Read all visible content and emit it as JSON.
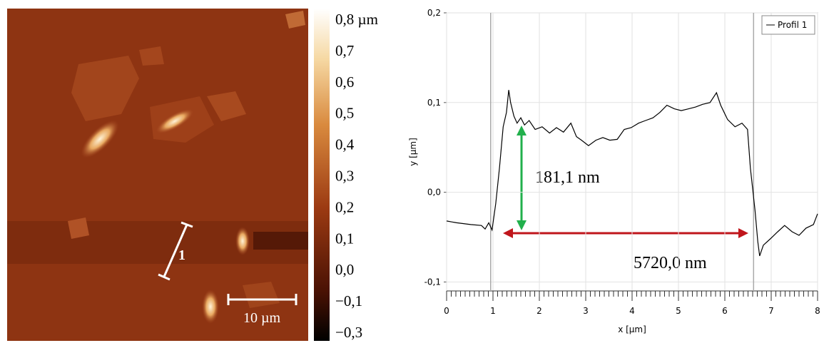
{
  "chart_data": [
    {
      "type": "image",
      "annotations": [
        "1",
        "10 µm"
      ],
      "colorbar_labels": [
        "0,8 µm",
        "0,7",
        "0,6",
        "0,5",
        "0,4",
        "0,3",
        "0,2",
        "0,1",
        "0,0",
        "−0,1",
        "−0,3"
      ]
    },
    {
      "type": "line",
      "xlabel": "x [µm]",
      "ylabel": "y [µm]",
      "x": [
        0,
        0.215,
        0.52,
        0.75,
        0.83,
        0.91,
        0.98,
        1.06,
        1.14,
        1.22,
        1.29,
        1.34,
        1.38,
        1.45,
        1.52,
        1.6,
        1.68,
        1.78,
        1.91,
        2.06,
        2.22,
        2.37,
        2.52,
        2.68,
        2.8,
        2.91,
        3.06,
        3.22,
        3.37,
        3.52,
        3.68,
        3.83,
        3.98,
        4.14,
        4.29,
        4.45,
        4.6,
        4.75,
        4.91,
        5.06,
        5.22,
        5.37,
        5.52,
        5.68,
        5.82,
        5.91,
        6.06,
        6.22,
        6.37,
        6.49,
        6.55,
        6.65,
        6.71,
        6.75,
        6.83,
        6.98,
        7.14,
        7.29,
        7.45,
        7.6,
        7.75,
        7.91,
        8
      ],
      "series": [
        {
          "name": "Profil 1",
          "color": "#000000",
          "values": [
            -0.032,
            -0.034,
            -0.036,
            -0.037,
            -0.041,
            -0.034,
            -0.042,
            -0.0125,
            0.027,
            0.073,
            0.089,
            0.114,
            0.1,
            0.085,
            0.077,
            0.083,
            0.075,
            0.08,
            0.07,
            0.073,
            0.066,
            0.072,
            0.067,
            0.077,
            0.062,
            0.058,
            0.052,
            0.058,
            0.061,
            0.058,
            0.059,
            0.07,
            0.072,
            0.077,
            0.08,
            0.083,
            0.089,
            0.097,
            0.093,
            0.091,
            0.093,
            0.095,
            0.098,
            0.1,
            0.111,
            0.097,
            0.081,
            0.073,
            0.077,
            0.07,
            0.027,
            -0.02,
            -0.055,
            -0.071,
            -0.059,
            -0.052,
            -0.044,
            -0.037,
            -0.044,
            -0.048,
            -0.04,
            -0.036,
            -0.024
          ]
        }
      ],
      "xlim": [
        0,
        8
      ],
      "ylim": [
        -0.11,
        0.2
      ],
      "xticks": [
        0,
        1,
        2,
        3,
        4,
        5,
        6,
        7,
        8
      ],
      "yticks": [
        {
          "value": 0.2,
          "label": "0,2"
        },
        {
          "value": 0.1,
          "label": "0,1"
        },
        {
          "value": 0,
          "label": "0,0"
        },
        {
          "value": -0.1,
          "label": "-0,1"
        }
      ],
      "cursors": [
        0.95,
        6.62
      ],
      "grid": true,
      "legend": "upper right",
      "annotations": [
        "181,1 nm",
        "5720,0 nm"
      ]
    }
  ]
}
